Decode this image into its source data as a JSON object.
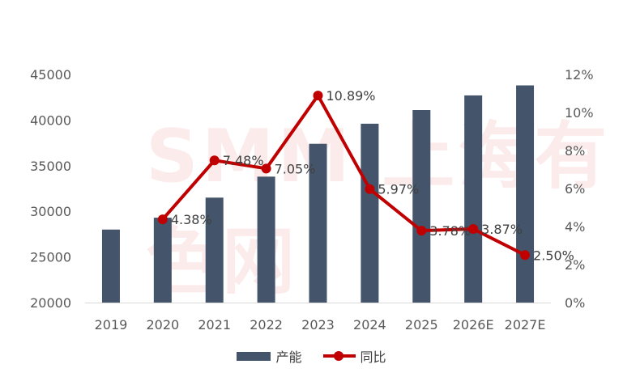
{
  "chart_data": {
    "type": "bar+line",
    "categories": [
      "2019",
      "2020",
      "2021",
      "2022",
      "2023",
      "2024",
      "2025",
      "2026E",
      "2027E"
    ],
    "series": [
      {
        "name": "产能",
        "type": "bar",
        "axis": "left",
        "color": "#44546a",
        "values": [
          28000,
          29300,
          31500,
          33800,
          37400,
          39600,
          41100,
          42700,
          43800
        ]
      },
      {
        "name": "同比",
        "type": "line",
        "axis": "right",
        "color": "#c00000",
        "values": [
          null,
          4.38,
          7.48,
          7.05,
          10.89,
          5.97,
          3.78,
          3.87,
          2.5
        ],
        "labels": [
          "",
          "4.38%",
          "7.48%",
          "7.05%",
          "10.89%",
          "5.97%",
          "3.78%",
          "3.87%",
          "2.50%"
        ]
      }
    ],
    "y_left": {
      "min": 20000,
      "max": 45000,
      "ticks": [
        "20000",
        "25000",
        "30000",
        "35000",
        "40000",
        "45000"
      ]
    },
    "y_right": {
      "min": 0,
      "max": 12,
      "ticks": [
        "0%",
        "2%",
        "4%",
        "6%",
        "8%",
        "10%",
        "12%"
      ]
    },
    "legend_position": "bottom-center",
    "grid": false
  },
  "legend": {
    "bar_label": "产能",
    "line_label": "同比"
  },
  "watermark": "SMM 上海有色网"
}
